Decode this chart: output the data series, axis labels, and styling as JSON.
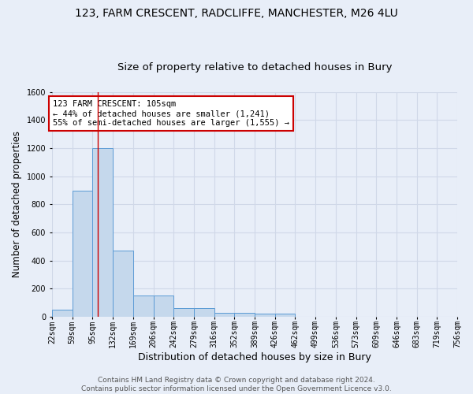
{
  "title": "123, FARM CRESCENT, RADCLIFFE, MANCHESTER, M26 4LU",
  "subtitle": "Size of property relative to detached houses in Bury",
  "xlabel": "Distribution of detached houses by size in Bury",
  "ylabel": "Number of detached properties",
  "bin_labels": [
    "22sqm",
    "59sqm",
    "95sqm",
    "132sqm",
    "169sqm",
    "206sqm",
    "242sqm",
    "279sqm",
    "316sqm",
    "352sqm",
    "389sqm",
    "426sqm",
    "462sqm",
    "499sqm",
    "536sqm",
    "573sqm",
    "609sqm",
    "646sqm",
    "683sqm",
    "719sqm",
    "756sqm"
  ],
  "bin_edges": [
    22,
    59,
    95,
    132,
    169,
    206,
    242,
    279,
    316,
    352,
    389,
    426,
    462,
    499,
    536,
    573,
    609,
    646,
    683,
    719,
    756
  ],
  "bar_heights": [
    50,
    900,
    1200,
    470,
    150,
    150,
    60,
    60,
    30,
    30,
    20,
    20,
    0,
    0,
    0,
    0,
    0,
    0,
    0,
    0
  ],
  "bar_color": "#c5d8ec",
  "bar_edge_color": "#5b9bd5",
  "red_line_x": 105,
  "annotation_text": "123 FARM CRESCENT: 105sqm\n← 44% of detached houses are smaller (1,241)\n55% of semi-detached houses are larger (1,555) →",
  "annotation_box_color": "#ffffff",
  "annotation_box_edge_color": "#cc0000",
  "ylim": [
    0,
    1600
  ],
  "yticks": [
    0,
    200,
    400,
    600,
    800,
    1000,
    1200,
    1400,
    1600
  ],
  "background_color": "#e8eef8",
  "grid_color": "#d0d8e8",
  "footer_text": "Contains HM Land Registry data © Crown copyright and database right 2024.\nContains public sector information licensed under the Open Government Licence v3.0.",
  "title_fontsize": 10,
  "subtitle_fontsize": 9.5,
  "xlabel_fontsize": 9,
  "ylabel_fontsize": 8.5,
  "tick_fontsize": 7,
  "annotation_fontsize": 7.5,
  "footer_fontsize": 6.5
}
